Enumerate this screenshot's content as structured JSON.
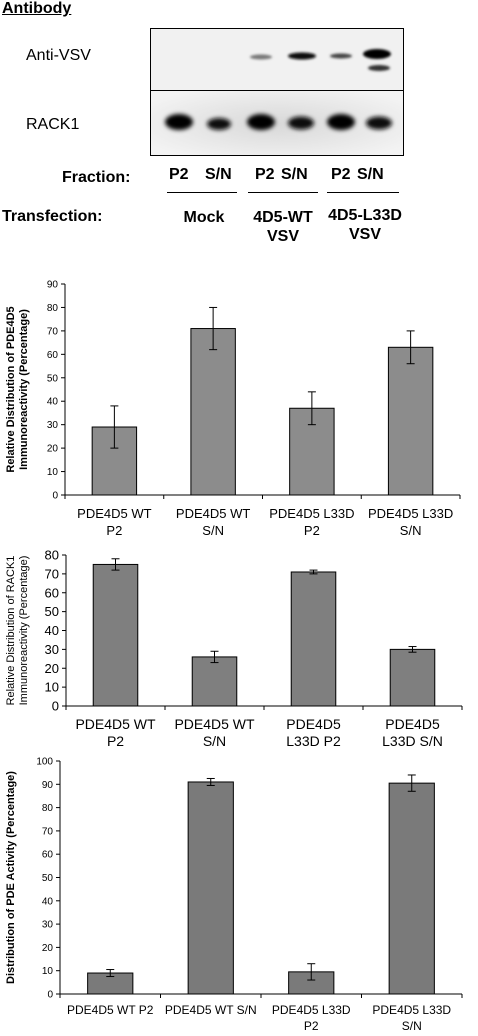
{
  "blot": {
    "header": "Antibody",
    "antibodies": [
      "Anti-VSV",
      "RACK1"
    ],
    "fraction_label": "Fraction:",
    "fractions": [
      "P2",
      "S/N",
      "P2",
      "S/N",
      "P2",
      "S/N"
    ],
    "transfection_label": "Transfection:",
    "transfections": [
      "Mock",
      "4D5-WT\nVSV",
      "4D5-L33D\nVSV"
    ]
  },
  "chart_data": [
    {
      "type": "bar",
      "categories": [
        "PDE4D5 WT\nP2",
        "PDE4D5 WT\nS/N",
        "PDE4D5 L33D\nP2",
        "PDE4D5 L33D\nS/N"
      ],
      "values": [
        29,
        71,
        37,
        63
      ],
      "errors": [
        9,
        9,
        7,
        7
      ],
      "ylabel": "Relative Distribution of PDE4D5\nImmunoreactivity (Percentage)",
      "ylim": [
        0,
        90
      ],
      "yticks": [
        0,
        10,
        20,
        30,
        40,
        50,
        60,
        70,
        80,
        90
      ],
      "bar_color": "#8c8c8c",
      "grid": false
    },
    {
      "type": "bar",
      "categories": [
        "PDE4D5 WT\nP2",
        "PDE4D5 WT\nS/N",
        "PDE4D5\nL33D P2",
        "PDE4D5\nL33D S/N"
      ],
      "values": [
        75,
        26,
        71,
        30
      ],
      "errors": [
        3,
        3,
        1,
        1.5
      ],
      "ylabel": "Relative Distribution of RACK1\nImmunoreactivity (Percentage)",
      "ylim": [
        0,
        80
      ],
      "yticks": [
        0,
        10,
        20,
        30,
        40,
        50,
        60,
        70,
        80
      ],
      "bar_color": "#7f7f7f",
      "grid": false
    },
    {
      "type": "bar",
      "categories": [
        "PDE4D5 WT P2",
        "PDE4D5 WT S/N",
        "PDE4D5 L33D\nP2",
        "PDE4D5 L33D\nS/N"
      ],
      "values": [
        9,
        91,
        9.5,
        90.5
      ],
      "errors": [
        1.5,
        1.5,
        3.5,
        3.5
      ],
      "ylabel": "Distribution of PDE Activity (Percentage)",
      "ylim": [
        0,
        100
      ],
      "yticks": [
        0,
        10,
        20,
        30,
        40,
        50,
        60,
        70,
        80,
        90,
        100
      ],
      "bar_color": "#7a7a7a",
      "grid": false
    }
  ]
}
